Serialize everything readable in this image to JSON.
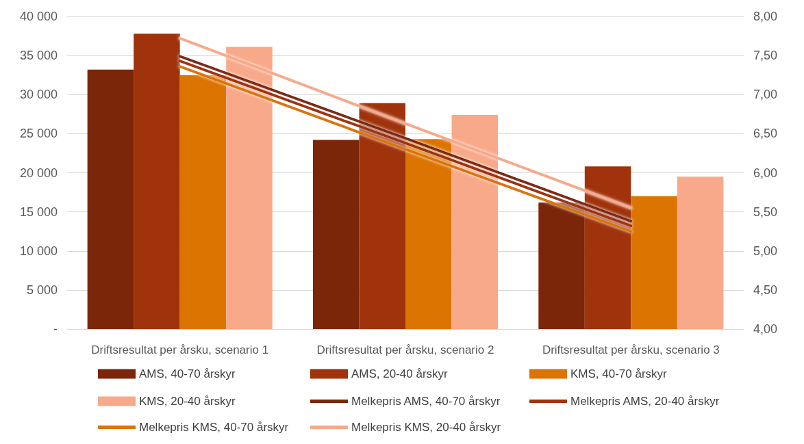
{
  "chart_data": {
    "type": "bar",
    "categories": [
      "Driftsresultat per årsku, scenario 1",
      "Driftsresultat per årsku, scenario 2",
      "Driftsresultat per årsku, scenario 3"
    ],
    "series": [
      {
        "name": "AMS, 40-70 årskyr",
        "color": "#7b2608",
        "values": [
          33200,
          24200,
          16200
        ]
      },
      {
        "name": "AMS, 20-40 årskyr",
        "color": "#a0330b",
        "values": [
          37800,
          28900,
          20800
        ]
      },
      {
        "name": "KMS, 40-70 årskyr",
        "color": "#db7400",
        "values": [
          32500,
          24300,
          17000
        ]
      },
      {
        "name": "KMS, 20-40 årskyr",
        "color": "#f7a98a",
        "values": [
          36100,
          27400,
          19500
        ]
      },
      {
        "name": "Melkepris AMS, 40-70 årskyr",
        "color": "#7b2608",
        "type": "line",
        "axis": "y2",
        "values": [
          7.49,
          6.44,
          5.38
        ]
      },
      {
        "name": "Melkepris AMS, 20-40 årskyr",
        "color": "#a0330b",
        "type": "line",
        "axis": "y2",
        "values": [
          7.43,
          6.38,
          5.32
        ]
      },
      {
        "name": "Melkepris KMS, 40-70 årskyr",
        "color": "#db7400",
        "type": "line",
        "axis": "y2",
        "values": [
          7.36,
          6.3,
          5.25
        ]
      },
      {
        "name": "Melkepris KMS, 20-40 årskyr",
        "color": "#f7a98a",
        "type": "line",
        "axis": "y2",
        "values": [
          7.72,
          6.63,
          5.55
        ]
      }
    ],
    "ylim": [
      0,
      40000
    ],
    "yticks": [
      {
        "value": 0,
        "label": "-"
      },
      {
        "value": 5000,
        "label": "5 000"
      },
      {
        "value": 10000,
        "label": "10 000"
      },
      {
        "value": 15000,
        "label": "15 000"
      },
      {
        "value": 20000,
        "label": "20 000"
      },
      {
        "value": 25000,
        "label": "25 000"
      },
      {
        "value": 30000,
        "label": "30 000"
      },
      {
        "value": 35000,
        "label": "35 000"
      },
      {
        "value": 40000,
        "label": "40 000"
      }
    ],
    "y2lim": [
      4,
      8
    ],
    "y2ticks": [
      {
        "value": 4,
        "label": "4,00"
      },
      {
        "value": 4.5,
        "label": "4,50"
      },
      {
        "value": 5,
        "label": "5,00"
      },
      {
        "value": 5.5,
        "label": "5,50"
      },
      {
        "value": 6,
        "label": "6,00"
      },
      {
        "value": 6.5,
        "label": "6,50"
      },
      {
        "value": 7,
        "label": "7,00"
      },
      {
        "value": 7.5,
        "label": "7,50"
      },
      {
        "value": 8,
        "label": "8,00"
      }
    ],
    "grid": "y",
    "legend": "bottom",
    "marker": "none"
  }
}
